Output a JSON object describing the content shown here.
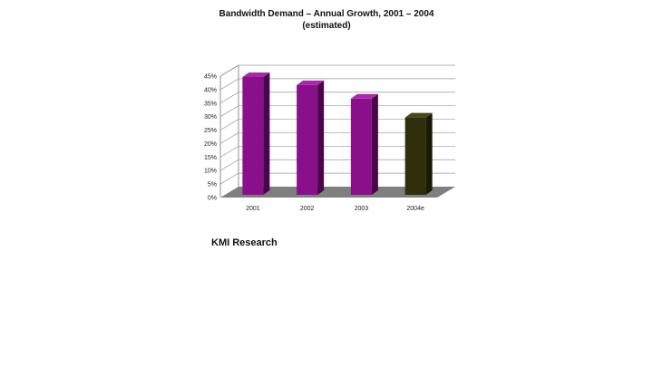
{
  "chart_data": {
    "type": "bar",
    "title": "Bandwidth Demand – Annual Growth, 2001 – 2004",
    "subtitle": "(estimated)",
    "categories": [
      "2001",
      "2002",
      "2003",
      "2004e"
    ],
    "values": [
      44,
      41,
      36,
      29
    ],
    "y_unit": "%",
    "ylim": [
      0,
      45
    ],
    "yticks": [
      "0%",
      "5%",
      "10%",
      "15%",
      "20%",
      "25%",
      "30%",
      "35%",
      "40%",
      "45%"
    ],
    "grid": true,
    "three_d": true,
    "xlabel": "",
    "ylabel": "",
    "colors": {
      "actual_front": "#8a0f8a",
      "actual_top": "#a629a6",
      "actual_side": "#4a064a",
      "estimate_front": "#2f300b",
      "estimate_top": "#46471a",
      "estimate_side": "#1a1b05",
      "floor": "#7f7f7f",
      "gridline": "#9a9a9a"
    },
    "estimated_category": "2004e"
  },
  "source": "KMI Research"
}
